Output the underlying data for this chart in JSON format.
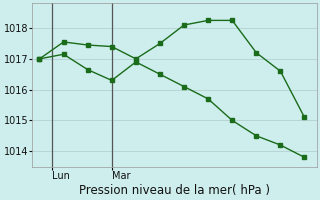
{
  "line1_x": [
    0,
    1,
    2,
    3,
    4,
    5,
    6,
    7,
    8,
    9,
    10,
    11
  ],
  "line1_y": [
    1017.0,
    1017.55,
    1017.45,
    1017.4,
    1017.0,
    1017.5,
    1018.1,
    1018.25,
    1018.25,
    1017.2,
    1016.6,
    1015.1
  ],
  "line2_x": [
    0,
    1,
    2,
    3,
    4,
    5,
    6,
    7,
    8,
    9,
    10,
    11
  ],
  "line2_y": [
    1017.0,
    1017.15,
    1016.65,
    1016.3,
    1016.9,
    1016.5,
    1016.1,
    1015.7,
    1015.0,
    1014.5,
    1014.2,
    1013.8
  ],
  "line_color": "#1a6b1a",
  "bg_color": "#ceeeed",
  "grid_color": "#b8d4d4",
  "xlabel": "Pression niveau de la mer( hPa )",
  "ylim": [
    1013.5,
    1018.8
  ],
  "yticks": [
    1014,
    1015,
    1016,
    1017,
    1018
  ],
  "vline1_x": 0.5,
  "vline2_x": 3.0,
  "xlabel_fontsize": 8.5,
  "tick_fontsize": 7,
  "xticklabels": [
    "Lun",
    "Mar"
  ],
  "xtick_positions": [
    0.5,
    3.0
  ],
  "xlim": [
    -0.3,
    11.5
  ],
  "marker_size": 2.8
}
